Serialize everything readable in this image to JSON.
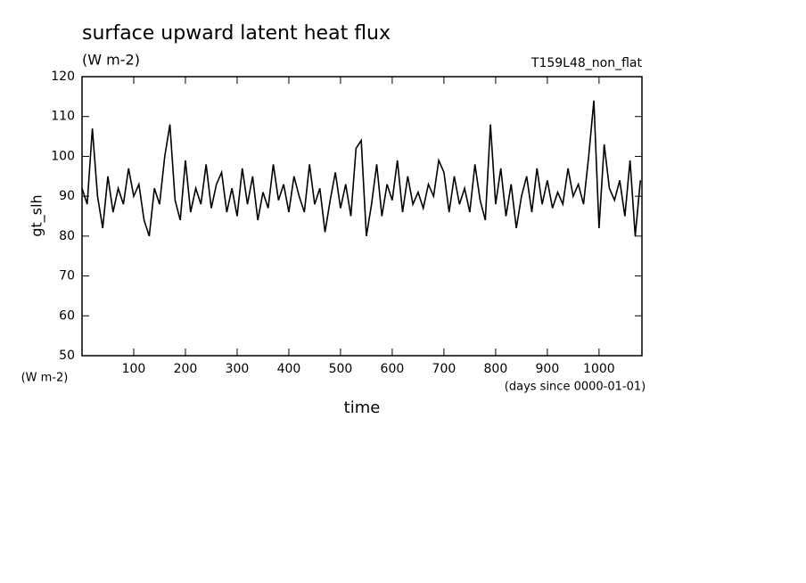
{
  "chart_data": {
    "type": "line",
    "title": "surface upward latent heat flux",
    "subtitle": "(W m-2)",
    "annotation": "T159L48_non_flat",
    "y_label": "gt_slh",
    "y_unit": "(W m-2)",
    "x_unit": "(days since 0000-01-01)",
    "x_label": "time",
    "x": [
      0,
      10,
      20,
      30,
      40,
      50,
      60,
      70,
      80,
      90,
      100,
      110,
      120,
      130,
      140,
      150,
      160,
      170,
      180,
      190,
      200,
      210,
      220,
      230,
      240,
      250,
      260,
      270,
      280,
      290,
      300,
      310,
      320,
      330,
      340,
      350,
      360,
      370,
      380,
      390,
      400,
      410,
      420,
      430,
      440,
      450,
      460,
      470,
      480,
      490,
      500,
      510,
      520,
      530,
      540,
      550,
      560,
      570,
      580,
      590,
      600,
      610,
      620,
      630,
      640,
      650,
      660,
      670,
      680,
      690,
      700,
      710,
      720,
      730,
      740,
      750,
      760,
      770,
      780,
      790,
      800,
      810,
      820,
      830,
      840,
      850,
      860,
      870,
      880,
      890,
      900,
      910,
      920,
      930,
      940,
      950,
      960,
      970,
      980,
      990,
      1000,
      1010,
      1020,
      1030,
      1040,
      1050,
      1060,
      1070,
      1080
    ],
    "series": [
      {
        "name": "gt_slh",
        "color": "#000000",
        "values": [
          92,
          88,
          107,
          90,
          82,
          95,
          86,
          92,
          88,
          97,
          90,
          93,
          84,
          80,
          92,
          88,
          100,
          108,
          89,
          84,
          99,
          86,
          92,
          88,
          98,
          87,
          93,
          96,
          86,
          92,
          85,
          97,
          88,
          95,
          84,
          91,
          87,
          98,
          89,
          93,
          86,
          95,
          90,
          86,
          98,
          88,
          92,
          81,
          89,
          96,
          87,
          93,
          85,
          102,
          104,
          80,
          88,
          98,
          85,
          93,
          89,
          99,
          86,
          95,
          88,
          91,
          87,
          93,
          90,
          99,
          96,
          86,
          95,
          88,
          92,
          86,
          98,
          89,
          84,
          108,
          88,
          97,
          85,
          93,
          82,
          90,
          95,
          86,
          97,
          88,
          94,
          87,
          91,
          88,
          97,
          90,
          93,
          88,
          100,
          114,
          82,
          103,
          92,
          89,
          94,
          85,
          99,
          80,
          94
        ]
      }
    ],
    "xlim": [
      0,
      1083
    ],
    "ylim": [
      50,
      120
    ],
    "xticks": [
      100,
      200,
      300,
      400,
      500,
      600,
      700,
      800,
      900,
      1000
    ],
    "yticks": [
      50,
      60,
      70,
      80,
      90,
      100,
      110,
      120
    ]
  }
}
